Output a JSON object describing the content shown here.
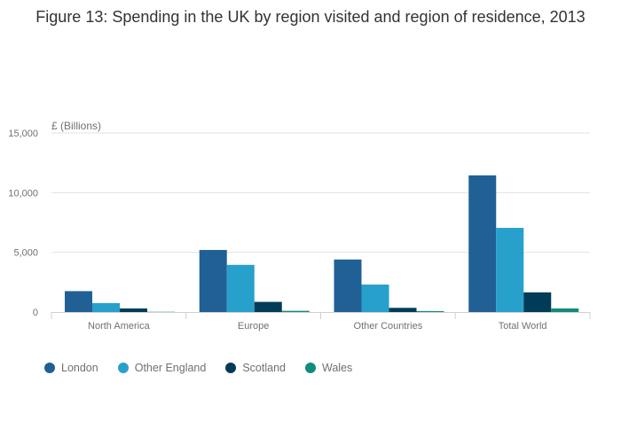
{
  "chart_data": {
    "type": "bar",
    "title": "Figure 13: Spending in the UK by region visited and region of residence, 2013",
    "ylabel": "£ (Billions)",
    "xlabel": "",
    "ylim": [
      0,
      15000
    ],
    "yticks": [
      "0",
      "5,000",
      "10,000",
      "15,000"
    ],
    "ytick_values": [
      0,
      5000,
      10000,
      15000
    ],
    "categories": [
      "North America",
      "Europe",
      "Other Countries",
      "Total World"
    ],
    "series": [
      {
        "name": "London",
        "color": "#206095",
        "values": [
          1750,
          5200,
          4400,
          11450
        ]
      },
      {
        "name": "Other England",
        "color": "#27a0cc",
        "values": [
          750,
          3950,
          2300,
          7050
        ]
      },
      {
        "name": "Scotland",
        "color": "#003c57",
        "values": [
          300,
          850,
          350,
          1650
        ]
      },
      {
        "name": "Wales",
        "color": "#118c7b",
        "values": [
          20,
          100,
          80,
          300
        ]
      }
    ],
    "legend_position": "bottom-left"
  }
}
